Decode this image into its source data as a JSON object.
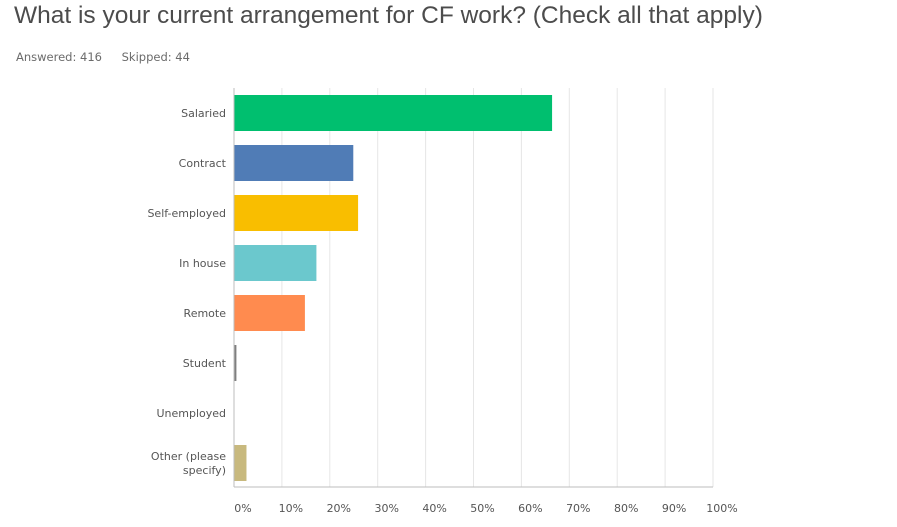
{
  "question": {
    "title": "What is your current arrangement for CF work? (Check all that apply)",
    "answered_label": "Answered: 416",
    "skipped_label": "Skipped: 44"
  },
  "chart_data": {
    "type": "bar",
    "orientation": "horizontal",
    "categories": [
      "Salaried",
      "Contract",
      "Self-employed",
      "In house",
      "Remote",
      "Student",
      "Unemployed",
      "Other (please specify)"
    ],
    "category_lines": [
      [
        "Salaried"
      ],
      [
        "Contract"
      ],
      [
        "Self-employed"
      ],
      [
        "In house"
      ],
      [
        "Remote"
      ],
      [
        "Student"
      ],
      [
        "Unemployed"
      ],
      [
        "Other (please",
        "specify)"
      ]
    ],
    "values": [
      66.3,
      24.8,
      25.8,
      17.1,
      14.7,
      0.4,
      0,
      2.5
    ],
    "colors": [
      "#00bf6f",
      "#507cb6",
      "#f9be00",
      "#6bc8cd",
      "#ff8b4f",
      "#7f7f7f",
      "#e05b9a",
      "#c8b97e"
    ],
    "xlim": [
      0,
      100
    ],
    "ticks": [
      0,
      10,
      20,
      30,
      40,
      50,
      60,
      70,
      80,
      90,
      100
    ],
    "tick_labels": [
      "0%",
      "10%",
      "20%",
      "30%",
      "40%",
      "50%",
      "60%",
      "70%",
      "80%",
      "90%",
      "100%"
    ],
    "grid": true
  }
}
